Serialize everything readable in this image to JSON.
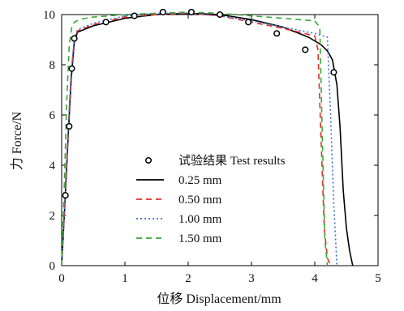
{
  "chart_data": {
    "type": "line",
    "xlabel": "位移 Displacement/mm",
    "ylabel": "力 Force/N",
    "xlim": [
      0,
      5
    ],
    "ylim": [
      0,
      10
    ],
    "x_ticks": [
      "0",
      "1",
      "2",
      "3",
      "4",
      "5"
    ],
    "y_ticks": [
      "0",
      "2",
      "4",
      "6",
      "8",
      "10"
    ],
    "grid": false,
    "legend_position": "center",
    "series": [
      {
        "name": "试验结果 Test results",
        "style": "markers",
        "color": "#000000",
        "x": [
          0.06,
          0.12,
          0.16,
          0.2,
          0.7,
          1.15,
          1.6,
          2.05,
          2.5,
          2.95,
          3.4,
          3.85,
          4.3
        ],
        "y": [
          2.8,
          5.55,
          7.85,
          9.05,
          9.7,
          9.95,
          10.1,
          10.1,
          10.0,
          9.7,
          9.25,
          8.6,
          7.7
        ]
      },
      {
        "name": "0.25 mm",
        "style": "solid",
        "color": "#000000",
        "x": [
          0.0,
          0.05,
          0.1,
          0.15,
          0.2,
          0.25,
          0.5,
          1.0,
          1.5,
          2.0,
          2.5,
          3.0,
          3.5,
          3.9,
          4.1,
          4.2,
          4.28,
          4.35,
          4.4,
          4.45,
          4.5,
          4.55,
          4.6
        ],
        "y": [
          0.0,
          2.4,
          5.0,
          7.4,
          8.9,
          9.3,
          9.55,
          9.85,
          10.0,
          10.05,
          10.0,
          9.8,
          9.5,
          9.1,
          8.8,
          8.55,
          8.2,
          7.2,
          5.5,
          3.0,
          1.5,
          0.6,
          0.0
        ]
      },
      {
        "name": "0.50 mm",
        "style": "dashed",
        "color": "#e0302a",
        "x": [
          0.0,
          0.05,
          0.1,
          0.15,
          0.2,
          0.25,
          0.5,
          1.0,
          1.5,
          2.0,
          2.5,
          3.0,
          3.5,
          4.0,
          4.05,
          4.1,
          4.15,
          4.2,
          4.25
        ],
        "y": [
          0.0,
          2.5,
          5.2,
          7.6,
          9.0,
          9.35,
          9.6,
          9.9,
          10.0,
          10.05,
          9.95,
          9.7,
          9.45,
          9.15,
          8.6,
          5.0,
          1.5,
          0.3,
          0.0
        ]
      },
      {
        "name": "1.00 mm",
        "style": "dotted",
        "color": "#3a6fd8",
        "x": [
          0.0,
          0.05,
          0.1,
          0.15,
          0.2,
          0.25,
          0.5,
          1.0,
          1.5,
          2.0,
          2.5,
          3.0,
          3.5,
          4.0,
          4.2,
          4.25,
          4.3,
          4.35
        ],
        "y": [
          0.0,
          2.6,
          5.3,
          7.7,
          9.05,
          9.4,
          9.65,
          9.95,
          10.05,
          10.05,
          9.95,
          9.75,
          9.5,
          9.25,
          9.1,
          6.0,
          2.5,
          0.0
        ]
      },
      {
        "name": "1.50 mm",
        "style": "dashed",
        "color": "#3aa83a",
        "x": [
          0.0,
          0.04,
          0.08,
          0.12,
          0.16,
          0.2,
          0.3,
          0.5,
          1.0,
          1.5,
          2.0,
          2.5,
          3.0,
          3.5,
          4.0,
          4.08,
          4.12,
          4.16,
          4.2
        ],
        "y": [
          0.0,
          3.0,
          6.5,
          8.8,
          9.5,
          9.7,
          9.82,
          9.9,
          10.0,
          10.05,
          10.1,
          10.05,
          9.95,
          9.85,
          9.75,
          9.5,
          5.0,
          1.0,
          0.0
        ]
      }
    ]
  }
}
